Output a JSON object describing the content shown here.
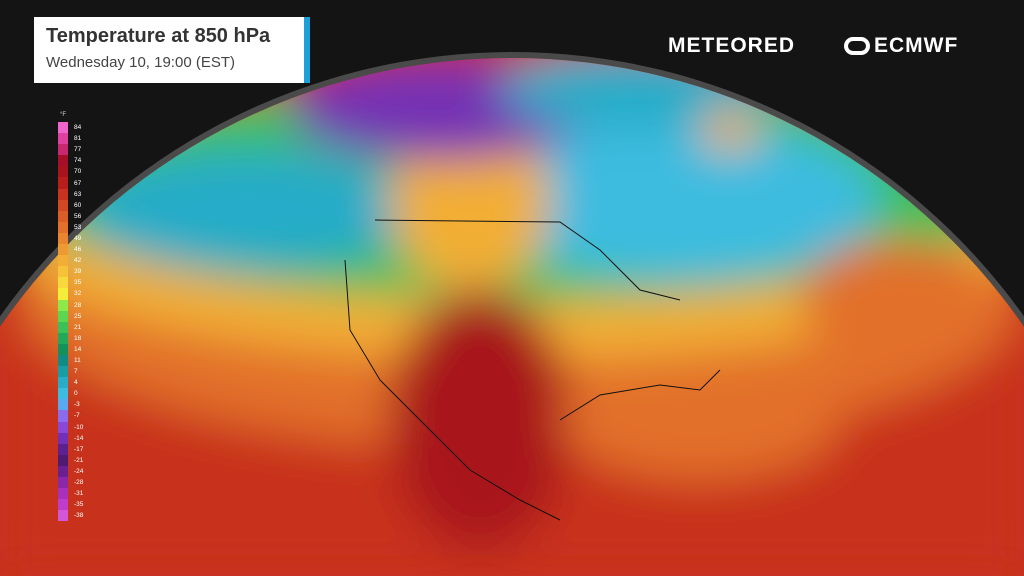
{
  "header": {
    "title": "Temperature at 850 hPa",
    "subtitle": "Wednesday 10, 19:00 (EST)",
    "accent": "#1e9fd8"
  },
  "brands": {
    "meteored": "METEORED",
    "ecmwf": "ECMWF"
  },
  "legend": {
    "unit": "°F",
    "items": [
      {
        "value": "84",
        "color": "#ee66cc"
      },
      {
        "value": "81",
        "color": "#e0409e"
      },
      {
        "value": "77",
        "color": "#c8286e"
      },
      {
        "value": "74",
        "color": "#a50f2a"
      },
      {
        "value": "70",
        "color": "#a8141e"
      },
      {
        "value": "67",
        "color": "#b81d1c"
      },
      {
        "value": "63",
        "color": "#c8321e"
      },
      {
        "value": "60",
        "color": "#d24824"
      },
      {
        "value": "56",
        "color": "#db5e28"
      },
      {
        "value": "53",
        "color": "#e2702a"
      },
      {
        "value": "49",
        "color": "#e8852e"
      },
      {
        "value": "46",
        "color": "#ee9a32"
      },
      {
        "value": "42",
        "color": "#f2ae36"
      },
      {
        "value": "39",
        "color": "#f6c23a"
      },
      {
        "value": "35",
        "color": "#f8d83c"
      },
      {
        "value": "32",
        "color": "#f4ee3a"
      },
      {
        "value": "28",
        "color": "#8ee84a"
      },
      {
        "value": "25",
        "color": "#5cd650"
      },
      {
        "value": "21",
        "color": "#3cc05a"
      },
      {
        "value": "18",
        "color": "#22a858"
      },
      {
        "value": "14",
        "color": "#14905a"
      },
      {
        "value": "11",
        "color": "#128a86"
      },
      {
        "value": "7",
        "color": "#1a9ca4"
      },
      {
        "value": "4",
        "color": "#28acc8"
      },
      {
        "value": "0",
        "color": "#3cbce0"
      },
      {
        "value": "-3",
        "color": "#5aa8f0"
      },
      {
        "value": "-7",
        "color": "#8a6cec"
      },
      {
        "value": "-10",
        "color": "#8a48d6"
      },
      {
        "value": "-14",
        "color": "#7430b4"
      },
      {
        "value": "-17",
        "color": "#5e208e"
      },
      {
        "value": "-21",
        "color": "#4e1a74"
      },
      {
        "value": "-24",
        "color": "#6a2090"
      },
      {
        "value": "-28",
        "color": "#8c28a8"
      },
      {
        "value": "-31",
        "color": "#a830bc"
      },
      {
        "value": "-35",
        "color": "#c03cca"
      },
      {
        "value": "-38",
        "color": "#d456d8"
      }
    ]
  }
}
